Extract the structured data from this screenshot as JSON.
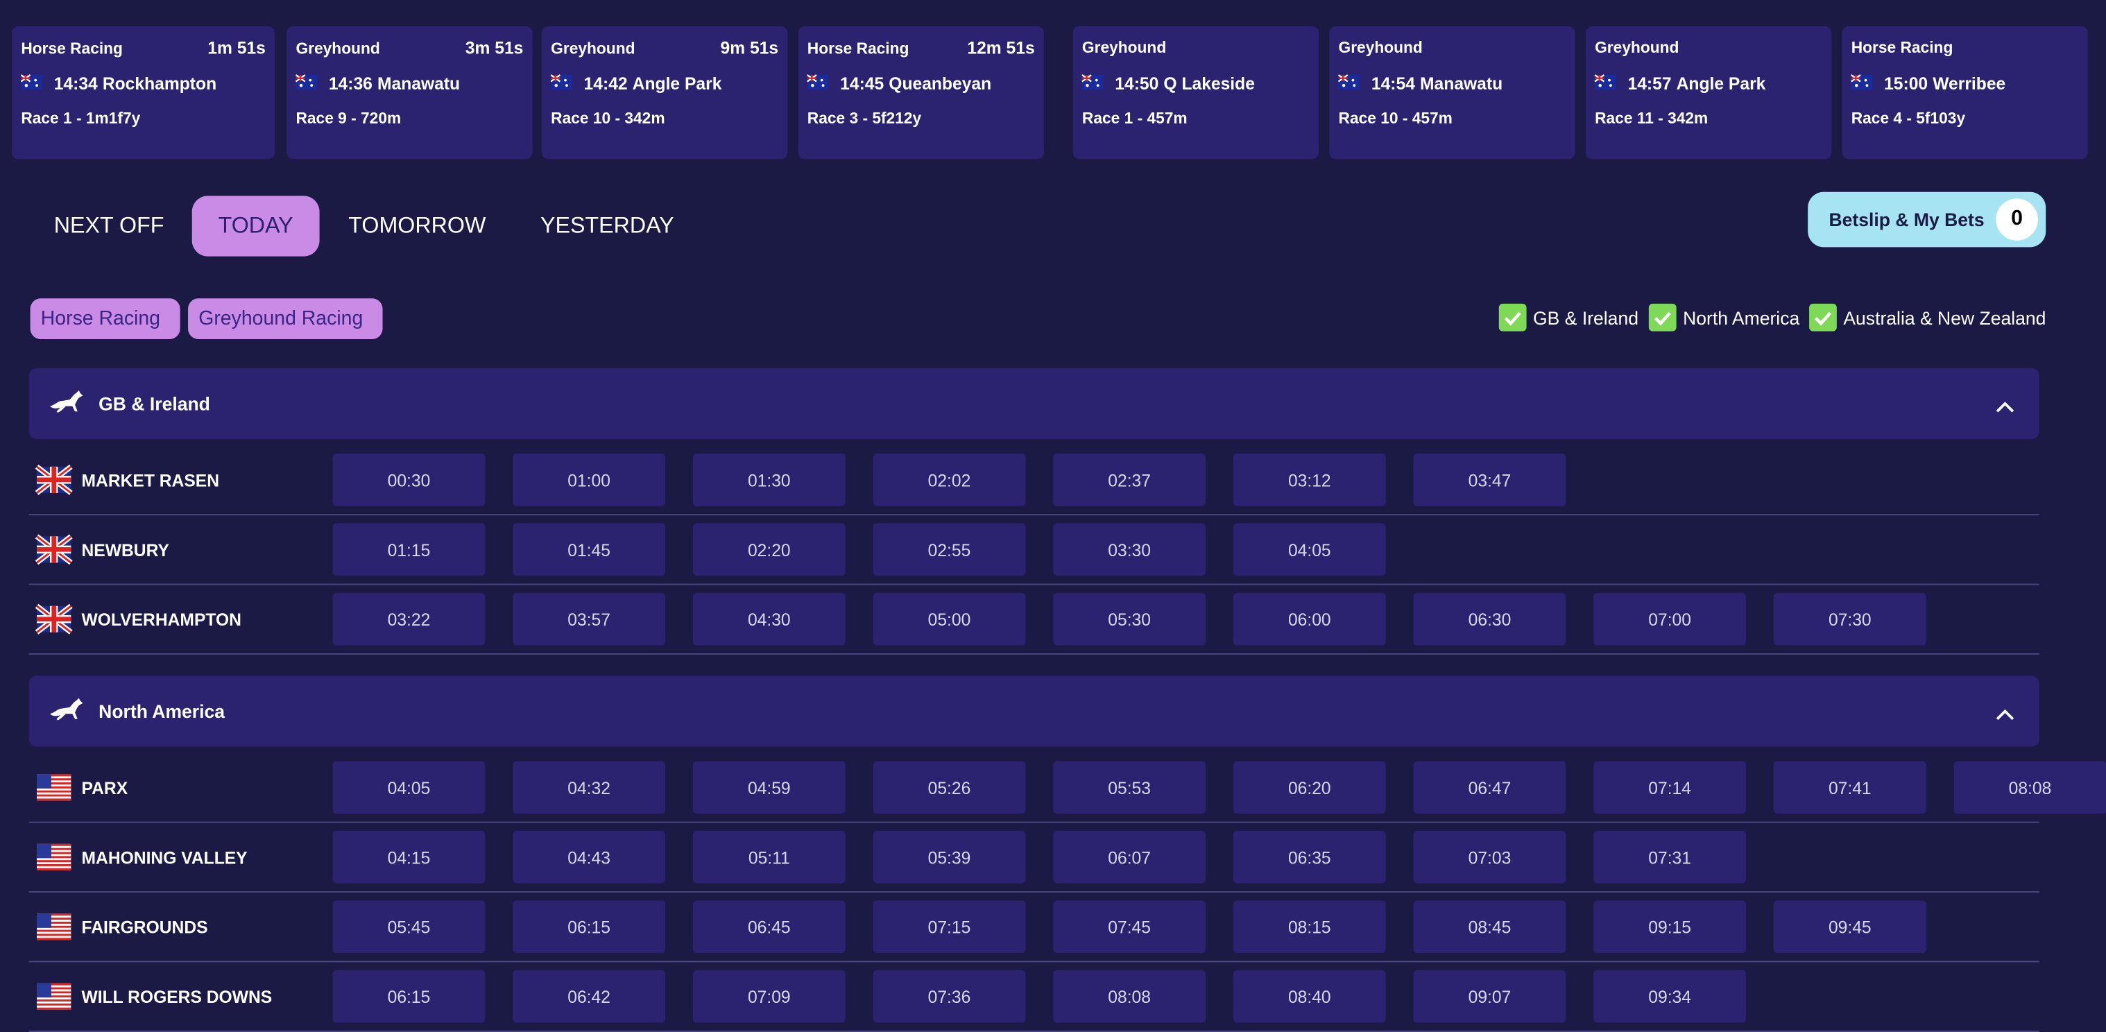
{
  "race_cards": [
    {
      "sport": "Horse Racing",
      "countdown": "1m 51s",
      "time": "14:34",
      "venue": "Rockhampton",
      "race": "Race 1 - 1m1f7y"
    },
    {
      "sport": "Greyhound",
      "countdown": "3m 51s",
      "time": "14:36",
      "venue": "Manawatu",
      "race": "Race 9 - 720m"
    },
    {
      "sport": "Greyhound",
      "countdown": "9m 51s",
      "time": "14:42",
      "venue": "Angle Park",
      "race": "Race 10 - 342m"
    },
    {
      "sport": "Horse Racing",
      "countdown": "12m 51s",
      "time": "14:45",
      "venue": "Queanbeyan",
      "race": "Race 3 - 5f212y"
    },
    {
      "sport": "Greyhound",
      "time": "14:50",
      "venue": "Q Lakeside",
      "race": "Race 1 - 457m"
    },
    {
      "sport": "Greyhound",
      "time": "14:54",
      "venue": "Manawatu",
      "race": "Race 10 - 457m"
    },
    {
      "sport": "Greyhound",
      "time": "14:57",
      "venue": "Angle Park",
      "race": "Race 11 - 342m"
    },
    {
      "sport": "Horse Racing",
      "time": "15:00",
      "venue": "Werribee",
      "race": "Race 4 - 5f103y"
    }
  ],
  "tabs": [
    "NEXT OFF",
    "TODAY",
    "TOMORROW",
    "YESTERDAY"
  ],
  "betslip": {
    "label": "Betslip & My Bets",
    "count": 0
  },
  "sport_filters": [
    "Horse Racing",
    "Greyhound Racing"
  ],
  "region_filters": [
    "GB & Ireland",
    "North America",
    "Australia & New Zealand"
  ],
  "regions": [
    {
      "name": "GB & Ireland",
      "courses": [
        {
          "name": "MARKET RASEN",
          "times": [
            "00:30",
            "01:00",
            "01:30",
            "02:02",
            "02:37",
            "03:12",
            "03:47"
          ]
        },
        {
          "name": "NEWBURY",
          "times": [
            "01:15",
            "01:45",
            "02:20",
            "02:55",
            "03:30",
            "04:05"
          ]
        },
        {
          "name": "WOLVERHAMPTON",
          "times": [
            "03:22",
            "03:57",
            "04:30",
            "05:00",
            "05:30",
            "06:00",
            "06:30",
            "07:00",
            "07:30"
          ]
        }
      ]
    },
    {
      "name": "North America",
      "courses": [
        {
          "name": "PARX",
          "times": [
            "04:05",
            "04:32",
            "04:59",
            "05:26",
            "05:53",
            "06:20",
            "06:47",
            "07:14",
            "07:41",
            "08:08"
          ]
        },
        {
          "name": "MAHONING VALLEY",
          "times": [
            "04:15",
            "04:43",
            "05:11",
            "05:39",
            "06:07",
            "06:35",
            "07:03",
            "07:31"
          ]
        },
        {
          "name": "FAIRGROUNDS",
          "times": [
            "05:45",
            "06:15",
            "06:45",
            "07:15",
            "07:45",
            "08:15",
            "08:45",
            "09:15",
            "09:45"
          ]
        },
        {
          "name": "WILL ROGERS DOWNS",
          "times": [
            "06:15",
            "06:42",
            "07:09",
            "07:36",
            "08:08",
            "08:40",
            "09:07",
            "09:34"
          ]
        }
      ]
    }
  ]
}
